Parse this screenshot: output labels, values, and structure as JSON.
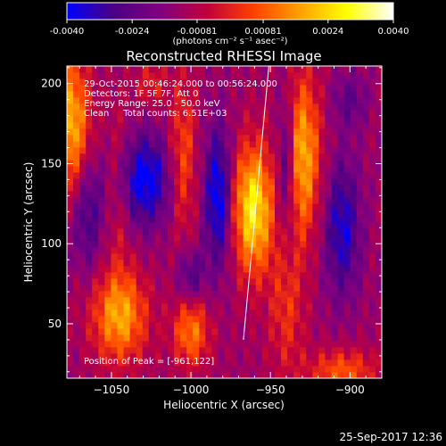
{
  "colorbar": {
    "ticks": [
      "-0.0040",
      "-0.0024",
      "-0.00081",
      "0.00081",
      "0.0024",
      "0.0040"
    ],
    "tick_values": [
      -0.004,
      -0.0024,
      -0.00081,
      0.00081,
      0.0024,
      0.004
    ],
    "range": [
      -0.004,
      0.004
    ],
    "unit_label": "(photons cm⁻² s⁻¹ asec⁻²)",
    "colors": [
      "#0000ff",
      "#4b0082",
      "#800080",
      "#c0003c",
      "#ff4000",
      "#ffa000",
      "#ffff00",
      "#ffffff"
    ]
  },
  "chart_data": {
    "type": "heatmap",
    "title": "Reconstructed RHESSI Image",
    "xlabel": "Heliocentric X (arcsec)",
    "ylabel": "Heliocentric Y (arcsec)",
    "xlim": [
      -1078,
      -880
    ],
    "ylim": [
      16,
      211
    ],
    "x_ticks": [
      -1050,
      -1000,
      -950,
      -900
    ],
    "y_ticks": [
      50,
      100,
      150,
      200
    ],
    "annotations": [
      "29-Oct-2015 00:46:24.000 to 00:56:24.000",
      "Detectors: 1F 5F 7F, Att 0",
      "Energy Range: 25.0 - 50.0 keV",
      "Clean     Total counts: 6.51E+03"
    ],
    "peak_label": "Position of Peak = [-961,122]",
    "peak": [
      -961,
      122
    ],
    "limb_line": [
      [
        -967,
        40
      ],
      [
        -951,
        211
      ]
    ],
    "sources": [
      {
        "x": -961,
        "y": 122,
        "sx": 9,
        "sy": 28,
        "v": 0.004
      },
      {
        "x": -930,
        "y": 155,
        "sx": 8,
        "sy": 35,
        "v": 0.0032
      },
      {
        "x": -1075,
        "y": 175,
        "sx": 8,
        "sy": 30,
        "v": 0.0032
      },
      {
        "x": -1045,
        "y": 55,
        "sx": 12,
        "sy": 20,
        "v": 0.003
      },
      {
        "x": -1000,
        "y": 45,
        "sx": 8,
        "sy": 15,
        "v": 0.0024
      },
      {
        "x": -1005,
        "y": 155,
        "sx": 6,
        "sy": 35,
        "v": 0.0018
      },
      {
        "x": -905,
        "y": 20,
        "sx": 15,
        "sy": 10,
        "v": 0.002
      },
      {
        "x": -940,
        "y": 60,
        "sx": 8,
        "sy": 30,
        "v": 0.0014
      },
      {
        "x": -1045,
        "y": 135,
        "sx": 6,
        "sy": 35,
        "v": 0.0012
      },
      {
        "x": -1025,
        "y": 200,
        "sx": 7,
        "sy": 10,
        "v": 0.0012
      },
      {
        "x": -1030,
        "y": 140,
        "sx": 12,
        "sy": 20,
        "v": -0.003
      },
      {
        "x": -983,
        "y": 130,
        "sx": 6,
        "sy": 30,
        "v": -0.003
      },
      {
        "x": -940,
        "y": 150,
        "sx": 4,
        "sy": 30,
        "v": -0.0024
      },
      {
        "x": -905,
        "y": 110,
        "sx": 8,
        "sy": 30,
        "v": -0.0024
      },
      {
        "x": -1065,
        "y": 120,
        "sx": 7,
        "sy": 25,
        "v": -0.0018
      },
      {
        "x": -1000,
        "y": 80,
        "sx": 6,
        "sy": 12,
        "v": -0.0016
      },
      {
        "x": -900,
        "y": 190,
        "sx": 8,
        "sy": 12,
        "v": -0.0012
      }
    ]
  },
  "footer": {
    "timestamp": "25-Sep-2017 12:36"
  }
}
